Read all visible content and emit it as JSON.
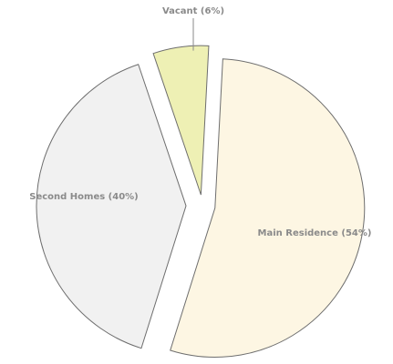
{
  "chart_data": {
    "type": "pie",
    "categories": [
      "Main Residence (54%)",
      "Second Homes (40%)",
      "Vacant (6%)"
    ],
    "values": [
      54,
      40,
      6
    ],
    "colors": [
      "#fdf6e3",
      "#f1f1f1",
      "#eef0b4"
    ]
  }
}
